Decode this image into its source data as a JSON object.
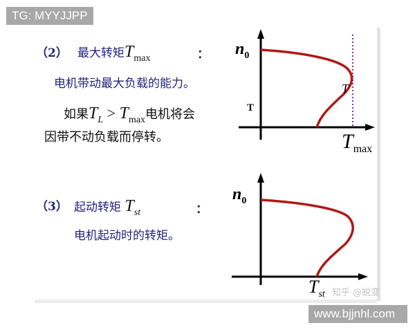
{
  "watermark_top": "TG: MYYJJPP",
  "watermark_bottom": "www.bjjnhl.com",
  "watermark_zhihu": "知乎 @蜕变",
  "section2": {
    "num": "（2）",
    "title": "最大转矩",
    "sym": "T",
    "sub": "max",
    "colon": "：",
    "desc": "电机带动最大负载的能力。",
    "cond_pre": "如果",
    "cond_tl": "T",
    "cond_tl_sub": "L",
    "cond_gt": " > ",
    "cond_tmax": "T",
    "cond_tmax_sub": "max",
    "cond_post": "电机将会",
    "cond_line2": "因带不动负载而停转。"
  },
  "section3": {
    "num": "（3）",
    "title": "起动转矩",
    "sym": "T",
    "sub": "st",
    "colon": "：",
    "desc": "电机起动时的转矩。"
  },
  "graph1": {
    "y_label": "n",
    "y_label_sub": "0",
    "t_label": "T",
    "curve_label": "T",
    "x_label": "T",
    "x_label_sub": "max"
  },
  "graph2": {
    "y_label": "n",
    "y_label_sub": "0",
    "x_label": "T",
    "x_label_sub": "st"
  },
  "colors": {
    "curve": "#b01818",
    "dotted": "#8a2bb0",
    "text_blue": "#25237e"
  }
}
